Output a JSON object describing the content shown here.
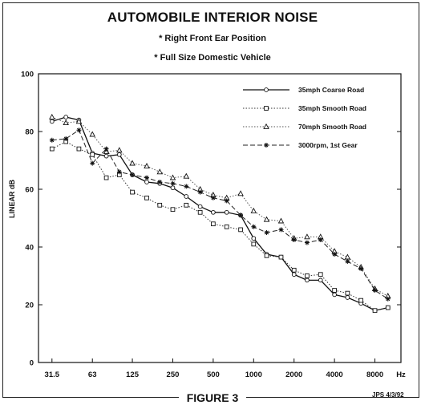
{
  "title": "AUTOMOBILE INTERIOR NOISE",
  "subtitle1": "* Right Front Ear Position",
  "subtitle2": "* Full Size Domestic Vehicle",
  "figure_label": "FIGURE 3",
  "initials": "JPS 4/3/92",
  "chart_data": {
    "type": "line",
    "ylabel": "LINEAR dB",
    "xlabel": "Hz",
    "ylim": [
      0,
      100
    ],
    "yticks": [
      0,
      20,
      40,
      60,
      80,
      100
    ],
    "x_scale": "log",
    "xlim": [
      25,
      12500
    ],
    "xtick_labels": [
      "31.5",
      "63",
      "125",
      "250",
      "500",
      "1000",
      "2000",
      "4000",
      "8000",
      "Hz"
    ],
    "xtick_values": [
      31.5,
      63,
      125,
      250,
      500,
      1000,
      2000,
      4000,
      8000,
      12500
    ],
    "x": [
      31.5,
      40,
      50,
      63,
      80,
      100,
      125,
      160,
      200,
      250,
      315,
      400,
      500,
      630,
      800,
      1000,
      1250,
      1600,
      2000,
      2500,
      3150,
      4000,
      5000,
      6300,
      8000,
      10000
    ],
    "legend_position": "top-right",
    "grid": false,
    "series": [
      {
        "name": "35mph Coarse Road",
        "style": "solid",
        "marker": "circle",
        "values": [
          83.5,
          85,
          84,
          72.5,
          71.5,
          72,
          65,
          62.5,
          62,
          60.5,
          57.5,
          54,
          52,
          52,
          51,
          43,
          37.5,
          36.5,
          30.5,
          28.5,
          28.5,
          23.5,
          22.5,
          20.5,
          18,
          19
        ]
      },
      {
        "name": "35mph Smooth Road",
        "style": "dotted",
        "marker": "square",
        "values": [
          74,
          76.5,
          74,
          72,
          64,
          65,
          59,
          57,
          54.5,
          53,
          54.5,
          52,
          48,
          47,
          46,
          41,
          37,
          36.5,
          32,
          30,
          30.5,
          25,
          24,
          21.5,
          18,
          19
        ]
      },
      {
        "name": "70mph Smooth Road",
        "style": "dotted",
        "marker": "triangle",
        "values": [
          85,
          83,
          83.5,
          79,
          73,
          73.5,
          69,
          68,
          66,
          64,
          64.5,
          60,
          58,
          57,
          58.5,
          52.5,
          49.5,
          49,
          43,
          43.5,
          43.5,
          38.5,
          36.5,
          33,
          25.5,
          23
        ]
      },
      {
        "name": "3000rpm, 1st Gear",
        "style": "dashed",
        "marker": "star",
        "values": [
          77,
          77.5,
          80.5,
          69,
          74,
          66,
          65,
          64,
          62.5,
          62,
          61,
          59,
          57,
          56,
          51,
          47,
          45,
          46,
          42.5,
          41.5,
          42.5,
          37.5,
          35,
          32.5,
          25,
          22
        ]
      }
    ]
  }
}
